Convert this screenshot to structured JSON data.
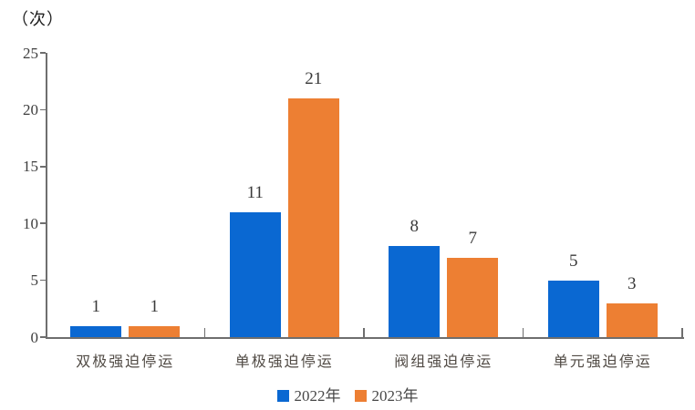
{
  "chart_data": {
    "type": "bar",
    "unit_label": "（次）",
    "categories": [
      "双极强迫停运",
      "单极强迫停运",
      "阀组强迫停运",
      "单元强迫停运"
    ],
    "series": [
      {
        "name": "2022年",
        "color": "#0a68d2",
        "values": [
          1,
          11,
          8,
          5
        ]
      },
      {
        "name": "2023年",
        "color": "#ed7f33",
        "values": [
          1,
          21,
          7,
          3
        ]
      }
    ],
    "ylabel": "（次）",
    "xlabel": "",
    "ylim": [
      0,
      25
    ],
    "yticks": [
      0,
      5,
      10,
      15,
      20,
      25
    ],
    "grid": false,
    "legend_position": "bottom",
    "axis_color": "#6e6e6e"
  }
}
